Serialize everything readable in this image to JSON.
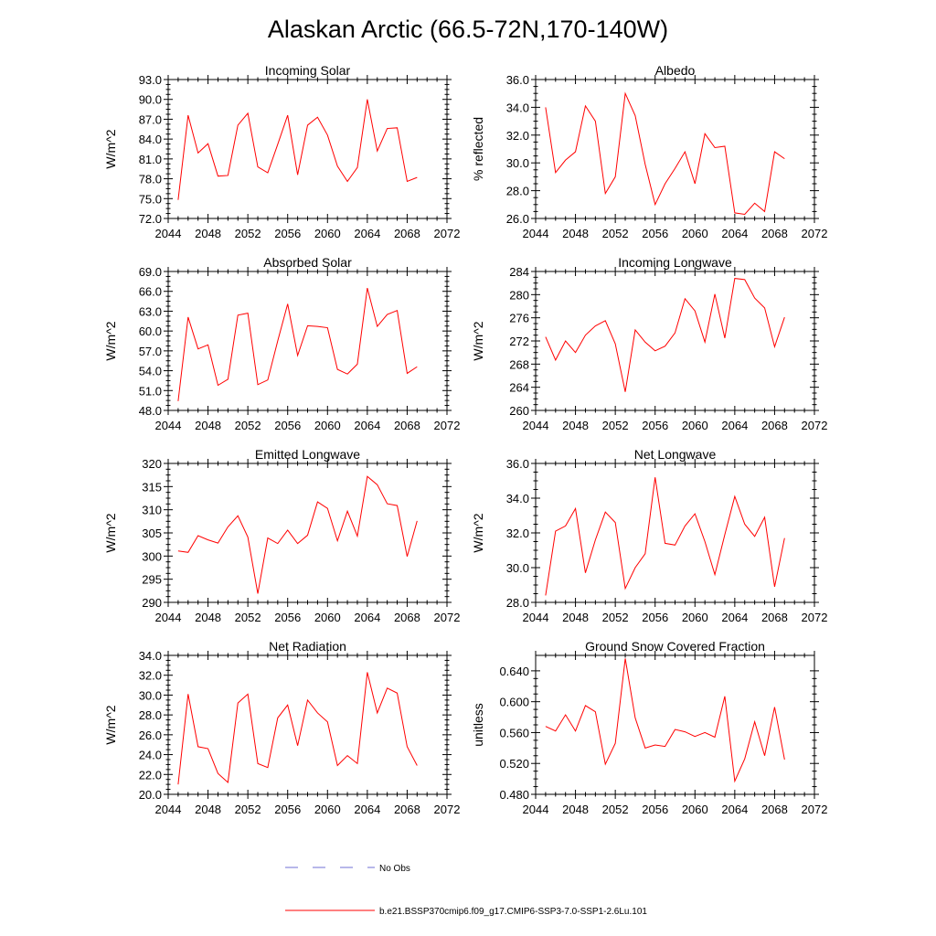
{
  "title": "Alaskan Arctic (66.5-72N,170-140W)",
  "legend": {
    "obs_label": "No Obs",
    "obs_color": "#6f6fd6",
    "model_label": "b.e21.BSSP370cmip6.f09_g17.CMIP6-SSP3-7.0-SSP1-2.6Lu.101",
    "model_color": "#ff0000"
  },
  "chart_data": [
    {
      "type": "line",
      "title": "Incoming Solar",
      "ylabel": "W/m^2",
      "xlim": [
        2044,
        2072
      ],
      "ylim": [
        72,
        93
      ],
      "xticks": [
        "2044",
        "2048",
        "2052",
        "2056",
        "2060",
        "2064",
        "2068",
        "2072"
      ],
      "yticks": [
        "72.0",
        "75.0",
        "78.0",
        "81.0",
        "84.0",
        "87.0",
        "90.0",
        "93.0"
      ],
      "x": [
        2045,
        2046,
        2047,
        2048,
        2049,
        2050,
        2051,
        2052,
        2053,
        2054,
        2055,
        2056,
        2057,
        2058,
        2059,
        2060,
        2061,
        2062,
        2063,
        2064,
        2065,
        2066,
        2067,
        2068,
        2069
      ],
      "series": [
        {
          "color": "#ff0000",
          "values": [
            74.8,
            87.6,
            81.9,
            83.3,
            78.4,
            78.5,
            86.1,
            87.9,
            79.8,
            78.9,
            83.2,
            87.6,
            78.6,
            86.1,
            87.3,
            84.6,
            79.9,
            77.6,
            79.7,
            90.0,
            82.2,
            85.6,
            85.7,
            77.6,
            78.2
          ]
        }
      ]
    },
    {
      "type": "line",
      "title": "Albedo",
      "ylabel": "% reflected",
      "xlim": [
        2044,
        2072
      ],
      "ylim": [
        26,
        36
      ],
      "xticks": [
        "2044",
        "2048",
        "2052",
        "2056",
        "2060",
        "2064",
        "2068",
        "2072"
      ],
      "yticks": [
        "26.0",
        "28.0",
        "30.0",
        "32.0",
        "34.0",
        "36.0"
      ],
      "x": [
        2045,
        2046,
        2047,
        2048,
        2049,
        2050,
        2051,
        2052,
        2053,
        2054,
        2055,
        2056,
        2057,
        2058,
        2059,
        2060,
        2061,
        2062,
        2063,
        2064,
        2065,
        2066,
        2067,
        2068,
        2069
      ],
      "series": [
        {
          "color": "#ff0000",
          "values": [
            34.0,
            29.3,
            30.2,
            30.8,
            34.1,
            33.0,
            27.8,
            29.0,
            35.0,
            33.4,
            29.9,
            27.0,
            28.5,
            29.6,
            30.8,
            28.5,
            32.1,
            31.1,
            31.2,
            26.4,
            26.3,
            27.1,
            26.5,
            30.8,
            30.3
          ]
        }
      ]
    },
    {
      "type": "line",
      "title": "Absorbed Solar",
      "ylabel": "W/m^2",
      "xlim": [
        2044,
        2072
      ],
      "ylim": [
        48,
        69
      ],
      "xticks": [
        "2044",
        "2048",
        "2052",
        "2056",
        "2060",
        "2064",
        "2068",
        "2072"
      ],
      "yticks": [
        "48.0",
        "51.0",
        "54.0",
        "57.0",
        "60.0",
        "63.0",
        "66.0",
        "69.0"
      ],
      "x": [
        2045,
        2046,
        2047,
        2048,
        2049,
        2050,
        2051,
        2052,
        2053,
        2054,
        2055,
        2056,
        2057,
        2058,
        2059,
        2060,
        2061,
        2062,
        2063,
        2064,
        2065,
        2066,
        2067,
        2068,
        2069
      ],
      "series": [
        {
          "color": "#ff0000",
          "values": [
            49.4,
            62.1,
            57.3,
            57.9,
            51.8,
            52.7,
            62.4,
            62.7,
            51.9,
            52.6,
            58.5,
            64.1,
            56.3,
            60.8,
            60.7,
            60.5,
            54.2,
            53.5,
            55.0,
            66.5,
            60.7,
            62.5,
            63.1,
            53.6,
            54.6
          ]
        }
      ]
    },
    {
      "type": "line",
      "title": "Incoming Longwave",
      "ylabel": "W/m^2",
      "xlim": [
        2044,
        2072
      ],
      "ylim": [
        260,
        284
      ],
      "xticks": [
        "2044",
        "2048",
        "2052",
        "2056",
        "2060",
        "2064",
        "2068",
        "2072"
      ],
      "yticks": [
        "260",
        "264",
        "268",
        "272",
        "276",
        "280",
        "284"
      ],
      "x": [
        2045,
        2046,
        2047,
        2048,
        2049,
        2050,
        2051,
        2052,
        2053,
        2054,
        2055,
        2056,
        2057,
        2058,
        2059,
        2060,
        2061,
        2062,
        2063,
        2064,
        2065,
        2066,
        2067,
        2068,
        2069
      ],
      "series": [
        {
          "color": "#ff0000",
          "values": [
            272.7,
            268.7,
            272.0,
            270.0,
            273.0,
            274.6,
            275.5,
            271.5,
            263.2,
            273.9,
            271.8,
            270.3,
            271.1,
            273.4,
            279.3,
            277.2,
            271.8,
            280.1,
            272.5,
            282.8,
            282.6,
            279.4,
            277.7,
            271.0,
            276.1
          ]
        }
      ]
    },
    {
      "type": "line",
      "title": "Emitted Longwave",
      "ylabel": "W/m^2",
      "xlim": [
        2044,
        2072
      ],
      "ylim": [
        290,
        320
      ],
      "xticks": [
        "2044",
        "2048",
        "2052",
        "2056",
        "2060",
        "2064",
        "2068",
        "2072"
      ],
      "yticks": [
        "290",
        "295",
        "300",
        "305",
        "310",
        "315",
        "320"
      ],
      "x": [
        2045,
        2046,
        2047,
        2048,
        2049,
        2050,
        2051,
        2052,
        2053,
        2054,
        2055,
        2056,
        2057,
        2058,
        2059,
        2060,
        2061,
        2062,
        2063,
        2064,
        2065,
        2066,
        2067,
        2068,
        2069
      ],
      "series": [
        {
          "color": "#ff0000",
          "values": [
            301.1,
            300.8,
            304.4,
            303.5,
            302.8,
            306.3,
            308.7,
            304.1,
            291.9,
            303.9,
            302.7,
            305.6,
            302.7,
            304.5,
            311.7,
            310.3,
            303.3,
            309.7,
            304.3,
            317.2,
            315.4,
            311.3,
            310.9,
            299.9,
            307.6
          ]
        }
      ]
    },
    {
      "type": "line",
      "title": "Net Longwave",
      "ylabel": "W/m^2",
      "xlim": [
        2044,
        2072
      ],
      "ylim": [
        28,
        36
      ],
      "xticks": [
        "2044",
        "2048",
        "2052",
        "2056",
        "2060",
        "2064",
        "2068",
        "2072"
      ],
      "yticks": [
        "28.0",
        "30.0",
        "32.0",
        "34.0",
        "36.0"
      ],
      "x": [
        2045,
        2046,
        2047,
        2048,
        2049,
        2050,
        2051,
        2052,
        2053,
        2054,
        2055,
        2056,
        2057,
        2058,
        2059,
        2060,
        2061,
        2062,
        2063,
        2064,
        2065,
        2066,
        2067,
        2068,
        2069
      ],
      "series": [
        {
          "color": "#ff0000",
          "values": [
            28.4,
            32.1,
            32.4,
            33.4,
            29.7,
            31.6,
            33.2,
            32.6,
            28.8,
            30.0,
            30.8,
            35.2,
            31.4,
            31.3,
            32.4,
            33.1,
            31.5,
            29.6,
            31.9,
            34.1,
            32.5,
            31.8,
            32.9,
            28.9,
            31.7
          ]
        }
      ]
    },
    {
      "type": "line",
      "title": "Net Radiation",
      "ylabel": "W/m^2",
      "xlim": [
        2044,
        2072
      ],
      "ylim": [
        20,
        34
      ],
      "xticks": [
        "2044",
        "2048",
        "2052",
        "2056",
        "2060",
        "2064",
        "2068",
        "2072"
      ],
      "yticks": [
        "20.0",
        "22.0",
        "24.0",
        "26.0",
        "28.0",
        "30.0",
        "32.0",
        "34.0"
      ],
      "x": [
        2045,
        2046,
        2047,
        2048,
        2049,
        2050,
        2051,
        2052,
        2053,
        2054,
        2055,
        2056,
        2057,
        2058,
        2059,
        2060,
        2061,
        2062,
        2063,
        2064,
        2065,
        2066,
        2067,
        2068,
        2069
      ],
      "series": [
        {
          "color": "#ff0000",
          "values": [
            21.0,
            30.1,
            24.8,
            24.6,
            22.1,
            21.2,
            29.2,
            30.1,
            23.1,
            22.7,
            27.7,
            29.0,
            24.9,
            29.5,
            28.2,
            27.3,
            22.9,
            23.9,
            23.1,
            32.3,
            28.2,
            30.7,
            30.2,
            24.8,
            22.9
          ]
        }
      ]
    },
    {
      "type": "line",
      "title": "Ground Snow Covered Fraction",
      "ylabel": "unitless",
      "xlim": [
        2044,
        2072
      ],
      "ylim": [
        0.48,
        0.66
      ],
      "xticks": [
        "2044",
        "2048",
        "2052",
        "2056",
        "2060",
        "2064",
        "2068",
        "2072"
      ],
      "yticks": [
        "0.480",
        "0.520",
        "0.560",
        "0.600",
        "0.640"
      ],
      "x": [
        2045,
        2046,
        2047,
        2048,
        2049,
        2050,
        2051,
        2052,
        2053,
        2054,
        2055,
        2056,
        2057,
        2058,
        2059,
        2060,
        2061,
        2062,
        2063,
        2064,
        2065,
        2066,
        2067,
        2068,
        2069
      ],
      "series": [
        {
          "color": "#ff0000",
          "values": [
            0.568,
            0.562,
            0.583,
            0.562,
            0.595,
            0.587,
            0.519,
            0.546,
            0.656,
            0.579,
            0.54,
            0.544,
            0.542,
            0.564,
            0.561,
            0.555,
            0.56,
            0.554,
            0.607,
            0.497,
            0.526,
            0.574,
            0.53,
            0.593,
            0.525
          ]
        }
      ]
    }
  ]
}
